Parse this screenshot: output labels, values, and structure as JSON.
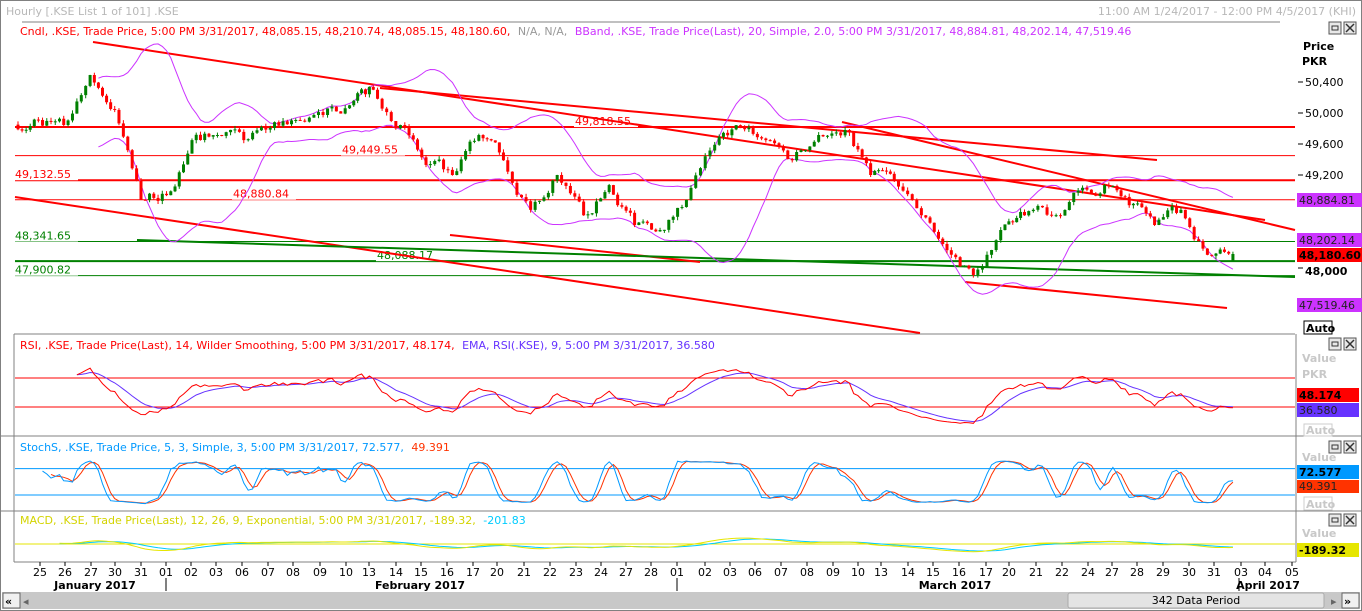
{
  "window": {
    "title": "Hourly [.KSE List 1 of 101] .KSE",
    "date_range": "11:00 AM 1/24/2017 - 12:00 PM 4/5/2017 (KHI)"
  },
  "main_panel": {
    "legend_candle": "Cndl, .KSE, Trade Price, 5:00 PM 3/31/2017, 48,085.15, 48,210.74, 48,085.15, 48,180.60,",
    "legend_na": "N/A, N/A,",
    "legend_bband": "BBand, .KSE, Trade Price(Last),  20, Simple, 2.0, 5:00 PM 3/31/2017, 48,884.81, 48,202.14, 47,519.46",
    "axis_title_1": "Price",
    "axis_title_2": "PKR",
    "axis_ticks": [
      "50,400",
      "50,000",
      "49,600",
      "49,200",
      "48,000"
    ],
    "value_bb_upper": "48,884.81",
    "value_bb_mid": "48,202.14",
    "value_last": "48,180.60",
    "value_bb_lower": "47,519.46",
    "auto_label": "Auto",
    "levels": [
      {
        "label": "49,818.55",
        "value": 49818.55,
        "color": "#ff0000"
      },
      {
        "label": "49,449.55",
        "value": 49449.55,
        "color": "#ff0000"
      },
      {
        "label": "49,132.55",
        "value": 49132.55,
        "color": "#ff0000"
      },
      {
        "label": "48,880.84",
        "value": 48880.84,
        "color": "#ff0000"
      },
      {
        "label": "48,341.65",
        "value": 48341.65,
        "color": "#008000"
      },
      {
        "label": "48,088.17",
        "value": 48088.17,
        "color": "#008000"
      },
      {
        "label": "47,900.82",
        "value": 47900.82,
        "color": "#008000"
      }
    ]
  },
  "rsi_panel": {
    "legend_rsi": "RSI, .KSE, Trade Price(Last),  14, Wilder Smoothing,  5:00 PM 3/31/2017, 48.174,",
    "legend_ema": "EMA, RSI(.KSE),  9,  5:00 PM 3/31/2017, 36.580",
    "value_title": "Value",
    "value_unit": "PKR",
    "value_rsi": "48.174",
    "value_ema": "36.580",
    "auto_label": "Auto"
  },
  "stoch_panel": {
    "legend_k": "StochS, .KSE, Trade Price,  5, 3, Simple,  3,  5:00 PM 3/31/2017, 72.577,",
    "legend_d": "49.391",
    "value_title": "Value",
    "value_k": "72.577",
    "value_d": "49.391",
    "auto_label": "Auto"
  },
  "macd_panel": {
    "legend_macd": "MACD, .KSE, Trade Price(Last),  12, 26, 9, Exponential,  5:00 PM 3/31/2017, -189.32,",
    "legend_signal": "-201.83",
    "value_title": "Value",
    "value_macd": "-189.32"
  },
  "date_axis": {
    "days": [
      "25",
      "26",
      "27",
      "30",
      "31",
      "01",
      "02",
      "03",
      "06",
      "07",
      "08",
      "09",
      "10",
      "13",
      "14",
      "15",
      "16",
      "17",
      "20",
      "21",
      "22",
      "23",
      "24",
      "27",
      "28",
      "01",
      "02",
      "03",
      "06",
      "07",
      "08",
      "09",
      "10",
      "13",
      "14",
      "15",
      "16",
      "17",
      "20",
      "21",
      "22",
      "24",
      "27",
      "28",
      "29",
      "30",
      "31",
      "03",
      "04",
      "05"
    ],
    "months": [
      "January 2017",
      "February 2017",
      "March 2017",
      "April 2017"
    ]
  },
  "scrollbar": {
    "period_label": "342 Data Period",
    "first_label": "«",
    "last_label": "»"
  },
  "colors": {
    "up": "#008000",
    "down": "#ff0000",
    "bband": "#cc33ff",
    "rsi": "#ff0000",
    "rsi_ema": "#6633ff",
    "stoch_k": "#0099ff",
    "stoch_d": "#ff3300",
    "macd": "#e6e600",
    "signal": "#00ccff"
  },
  "chart_data": {
    "type": "candlestick",
    "title": "Hourly [.KSE List 1 of 101] .KSE",
    "ylabel": "Price PKR",
    "ylim": [
      47400,
      50700
    ],
    "interval": "hourly",
    "data_periods": 342,
    "daily_close_estimates": [
      {
        "date": "2017-01-25",
        "close": 49910
      },
      {
        "date": "2017-01-26",
        "close": 49845
      },
      {
        "date": "2017-01-27",
        "close": 50490
      },
      {
        "date": "2017-01-30",
        "close": 50040
      },
      {
        "date": "2017-01-31",
        "close": 48880
      },
      {
        "date": "2017-02-01",
        "close": 48940
      },
      {
        "date": "2017-02-02",
        "close": 49650
      },
      {
        "date": "2017-02-03",
        "close": 49716
      },
      {
        "date": "2017-02-06",
        "close": 49650
      },
      {
        "date": "2017-02-07",
        "close": 49806
      },
      {
        "date": "2017-02-08",
        "close": 49910
      },
      {
        "date": "2017-02-09",
        "close": 49974
      },
      {
        "date": "2017-02-10",
        "close": 50100
      },
      {
        "date": "2017-02-13",
        "close": 50300
      },
      {
        "date": "2017-02-14",
        "close": 49845
      },
      {
        "date": "2017-02-15",
        "close": 49330
      },
      {
        "date": "2017-02-16",
        "close": 49200
      },
      {
        "date": "2017-02-17",
        "close": 49716
      },
      {
        "date": "2017-02-20",
        "close": 49390
      },
      {
        "date": "2017-02-21",
        "close": 48750
      },
      {
        "date": "2017-02-22",
        "close": 49200
      },
      {
        "date": "2017-02-23",
        "close": 48680
      },
      {
        "date": "2017-02-24",
        "close": 49070
      },
      {
        "date": "2017-02-27",
        "close": 48555
      },
      {
        "date": "2017-02-28",
        "close": 48490
      },
      {
        "date": "2017-03-01",
        "close": 48880
      },
      {
        "date": "2017-03-02",
        "close": 49590
      },
      {
        "date": "2017-03-03",
        "close": 49806
      },
      {
        "date": "2017-03-06",
        "close": 49650
      },
      {
        "date": "2017-03-07",
        "close": 49390
      },
      {
        "date": "2017-03-08",
        "close": 49716
      },
      {
        "date": "2017-03-09",
        "close": 49780
      },
      {
        "date": "2017-03-10",
        "close": 49200
      },
      {
        "date": "2017-03-13",
        "close": 49135
      },
      {
        "date": "2017-03-14",
        "close": 48680
      },
      {
        "date": "2017-03-15",
        "close": 48230
      },
      {
        "date": "2017-03-16",
        "close": 47910
      },
      {
        "date": "2017-03-17",
        "close": 48490
      },
      {
        "date": "2017-03-20",
        "close": 48680
      },
      {
        "date": "2017-03-21",
        "close": 48680
      },
      {
        "date": "2017-03-22",
        "close": 49000
      },
      {
        "date": "2017-03-24",
        "close": 49070
      },
      {
        "date": "2017-03-27",
        "close": 48810
      },
      {
        "date": "2017-03-28",
        "close": 48555
      },
      {
        "date": "2017-03-29",
        "close": 48750
      },
      {
        "date": "2017-03-30",
        "close": 48170
      },
      {
        "date": "2017-03-31",
        "close": 48180.6
      }
    ],
    "last_bar": {
      "time": "5:00 PM 3/31/2017",
      "open": 48085.15,
      "high": 48210.74,
      "low": 48085.15,
      "close": 48180.6
    },
    "bollinger": {
      "period": 20,
      "type": "Simple",
      "std": 2.0,
      "upper": 48884.81,
      "middle": 48202.14,
      "lower": 47519.46
    },
    "rsi": {
      "period": 14,
      "smoothing": "Wilder",
      "value": 48.174,
      "ema_period": 9,
      "ema_value": 36.58
    },
    "stochastic": {
      "k": 5,
      "d": 3,
      "type": "Simple",
      "smooth": 3,
      "k_value": 72.577,
      "d_value": 49.391
    },
    "macd": {
      "fast": 12,
      "slow": 26,
      "signal": 9,
      "type": "Exponential",
      "macd": -189.32,
      "signal_value": -201.83
    }
  }
}
